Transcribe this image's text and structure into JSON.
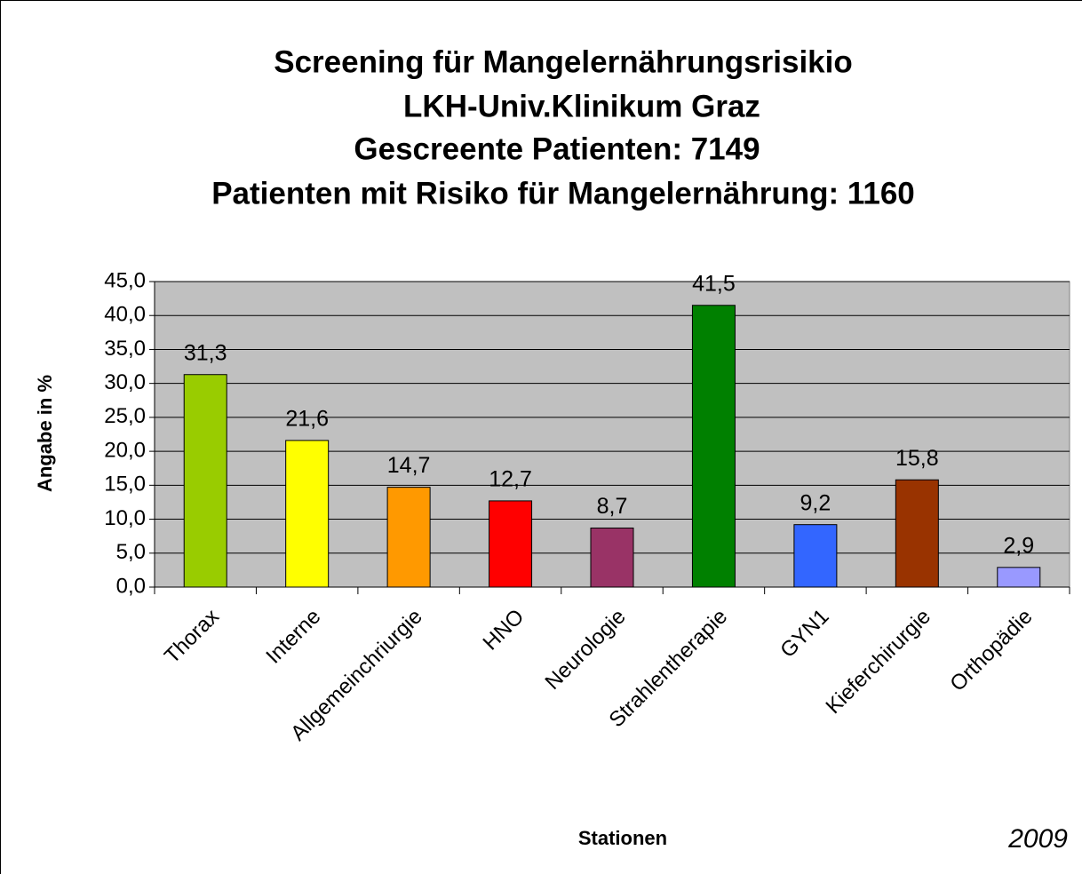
{
  "chart_data": {
    "type": "bar",
    "title": [
      "Screening für Mangelernährungsrisikio",
      "LKH-Univ.Klinikum Graz",
      "Gescreente Patienten: 7149",
      "Patienten mit Risiko für Mangelernährung: 1160"
    ],
    "xlabel": "Stationen",
    "ylabel": "Angabe in %",
    "annotation": "2009",
    "categories": [
      "Thorax",
      "Interne",
      "Allgemeinchriurgie",
      "HNO",
      "Neurologie",
      "Strahlentherapie",
      "GYN1",
      "Kieferchirurgie",
      "Orthopädie"
    ],
    "values": [
      31.3,
      21.6,
      14.7,
      12.7,
      8.7,
      41.5,
      9.2,
      15.8,
      2.9
    ],
    "value_labels": [
      "31,3",
      "21,6",
      "14,7",
      "12,7",
      "8,7",
      "41,5",
      "9,2",
      "15,8",
      "2,9"
    ],
    "colors": [
      "#99cc00",
      "#ffff00",
      "#ff9900",
      "#ff0000",
      "#993366",
      "#008000",
      "#3366ff",
      "#993300",
      "#9999ff"
    ],
    "ylim": [
      0,
      45
    ],
    "yticks": [
      {
        "value": 0,
        "label": "0,0"
      },
      {
        "value": 5,
        "label": "5,0"
      },
      {
        "value": 10,
        "label": "10,0"
      },
      {
        "value": 15,
        "label": "15,0"
      },
      {
        "value": 20,
        "label": "20,0"
      },
      {
        "value": 25,
        "label": "25,0"
      },
      {
        "value": 30,
        "label": "30,0"
      },
      {
        "value": 35,
        "label": "35,0"
      },
      {
        "value": 40,
        "label": "40,0"
      },
      {
        "value": 45,
        "label": "45,0"
      }
    ],
    "grid": true
  }
}
